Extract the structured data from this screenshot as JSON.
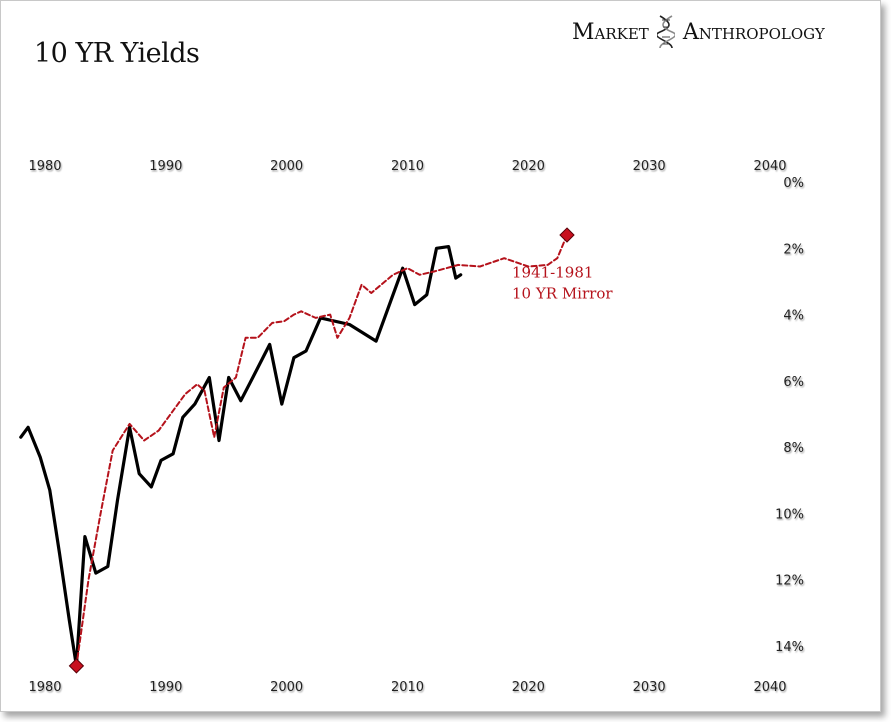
{
  "header": {
    "brand_word1": "Market",
    "brand_word2": "Anthropology",
    "brand_icon": "dna-helix-icon"
  },
  "chart_data": {
    "type": "line",
    "title": "10 YR Yields",
    "x_ticks": [
      "1980",
      "1990",
      "2000",
      "2010",
      "2020",
      "2030",
      "2040"
    ],
    "y_ticks": [
      "0%",
      "2%",
      "4%",
      "6%",
      "8%",
      "10%",
      "12%",
      "14%"
    ],
    "xlim": [
      1978,
      2043
    ],
    "ylim": [
      0,
      14.7
    ],
    "y_inverted": true,
    "grid": false,
    "colors": {
      "actual": "#000000",
      "mirror": "#b5121b",
      "marker": "#c8101e"
    },
    "series": [
      {
        "key": "actual",
        "name": "",
        "style": "solid",
        "points": [
          [
            1978.0,
            7.7
          ],
          [
            1978.6,
            7.4
          ],
          [
            1979.6,
            8.3
          ],
          [
            1980.4,
            9.3
          ],
          [
            1981.2,
            11.2
          ],
          [
            1982.0,
            13.2
          ],
          [
            1982.6,
            14.6
          ],
          [
            1983.3,
            10.7
          ],
          [
            1984.2,
            11.8
          ],
          [
            1985.2,
            11.6
          ],
          [
            1986.0,
            9.6
          ],
          [
            1987.0,
            7.4
          ],
          [
            1987.8,
            8.8
          ],
          [
            1988.8,
            9.2
          ],
          [
            1989.6,
            8.4
          ],
          [
            1990.6,
            8.2
          ],
          [
            1991.4,
            7.1
          ],
          [
            1992.4,
            6.7
          ],
          [
            1993.6,
            5.9
          ],
          [
            1994.4,
            7.8
          ],
          [
            1995.2,
            5.9
          ],
          [
            1996.2,
            6.6
          ],
          [
            1997.2,
            5.9
          ],
          [
            1998.6,
            4.9
          ],
          [
            1999.6,
            6.7
          ],
          [
            2000.6,
            5.3
          ],
          [
            2001.6,
            5.1
          ],
          [
            2002.8,
            4.1
          ],
          [
            2005.2,
            4.3
          ],
          [
            2007.4,
            4.8
          ],
          [
            2009.6,
            2.6
          ],
          [
            2010.6,
            3.7
          ],
          [
            2011.6,
            3.4
          ],
          [
            2012.4,
            2.0
          ],
          [
            2013.4,
            1.95
          ],
          [
            2014.0,
            2.9
          ],
          [
            2014.4,
            2.8
          ]
        ]
      },
      {
        "key": "mirror",
        "name": "1941-1981 10 YR Mirror",
        "style": "dashed",
        "points": [
          [
            1982.6,
            14.6
          ],
          [
            1983.6,
            12.0
          ],
          [
            1984.6,
            10.0
          ],
          [
            1985.6,
            8.1
          ],
          [
            1987.0,
            7.3
          ],
          [
            1988.2,
            7.8
          ],
          [
            1989.4,
            7.5
          ],
          [
            1990.6,
            6.9
          ],
          [
            1991.6,
            6.4
          ],
          [
            1992.6,
            6.1
          ],
          [
            1993.2,
            6.3
          ],
          [
            1994.0,
            7.7
          ],
          [
            1994.8,
            6.2
          ],
          [
            1995.8,
            5.9
          ],
          [
            1996.6,
            4.7
          ],
          [
            1997.6,
            4.7
          ],
          [
            1998.8,
            4.25
          ],
          [
            1999.8,
            4.2
          ],
          [
            2000.6,
            4.0
          ],
          [
            2001.2,
            3.9
          ],
          [
            2002.4,
            4.1
          ],
          [
            2003.6,
            4.0
          ],
          [
            2004.2,
            4.7
          ],
          [
            2005.2,
            4.1
          ],
          [
            2006.2,
            3.1
          ],
          [
            2007.0,
            3.35
          ],
          [
            2008.8,
            2.8
          ],
          [
            2010.0,
            2.6
          ],
          [
            2011.0,
            2.8
          ],
          [
            2012.2,
            2.7
          ],
          [
            2014.2,
            2.5
          ],
          [
            2016.0,
            2.55
          ],
          [
            2018.0,
            2.3
          ],
          [
            2020.0,
            2.55
          ],
          [
            2021.6,
            2.5
          ],
          [
            2022.4,
            2.3
          ],
          [
            2023.2,
            1.6
          ]
        ]
      }
    ],
    "markers": [
      {
        "x": 1982.6,
        "y": 14.6,
        "shape": "diamond"
      },
      {
        "x": 2023.2,
        "y": 1.6,
        "shape": "diamond"
      }
    ],
    "annotations": [
      {
        "series": "mirror",
        "lines": [
          "1941-1981",
          "10 YR Mirror"
        ],
        "x": 2021.8,
        "y": 3.0
      }
    ]
  }
}
